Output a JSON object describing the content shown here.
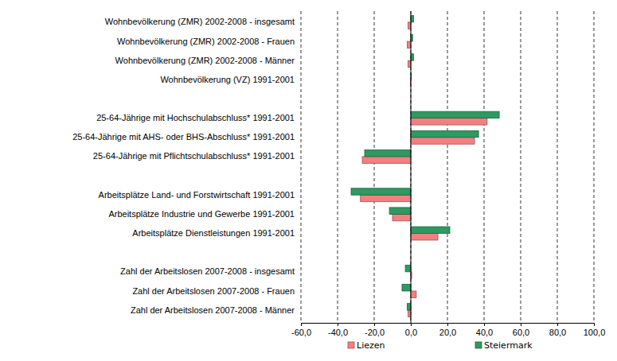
{
  "chart_data": {
    "type": "bar",
    "orientation": "horizontal",
    "categories": [
      "Wohnbevölkerung (ZMR) 2002-2008 - insgesamt",
      "Wohnbevölkerung (ZMR) 2002-2008 - Frauen",
      "Wohnbevölkerung (ZMR) 2002-2008 - Männer",
      "Wohnbevölkerung (VZ) 1991-2001",
      null,
      "25-64-Jährige mit Hochschulabschluss* 1991-2001",
      "25-64-Jährige mit AHS- oder BHS-Abschluss* 1991-2001",
      "25-64-Jährige mit Pflichtschulabschluss* 1991-2001",
      null,
      "Arbeitsplätze Land- und Forstwirtschaft 1991-2001",
      "Arbeitsplätze Industrie und Gewerbe 1991-2001",
      "Arbeitsplätze Dienstleistungen 1991-2001",
      null,
      "Zahl der Arbeitslosen 2007-2008 - insgesamt",
      "Zahl der Arbeitslosen 2007-2008 - Frauen",
      "Zahl der Arbeitslosen 2007-2008 - Männer"
    ],
    "series": [
      {
        "name": "Liezen",
        "color": "#f28080",
        "values": [
          -1.5,
          -2,
          -1.5,
          -0.2,
          null,
          41.7,
          34.8,
          -26.5,
          null,
          -27.5,
          -10,
          14.8,
          null,
          0.5,
          3,
          -1.5
        ]
      },
      {
        "name": "Steiermark",
        "color": "#2e9960",
        "values": [
          1.5,
          1,
          1.5,
          0.3,
          null,
          48.3,
          37,
          -25.2,
          null,
          -32.6,
          -11.7,
          21.3,
          null,
          -3,
          -4.8,
          -2
        ]
      }
    ],
    "xlim": [
      -60,
      100
    ],
    "xticks": [
      {
        "value": -60,
        "label": "-60,0"
      },
      {
        "value": -40,
        "label": "-40,0"
      },
      {
        "value": -20,
        "label": "-20,0"
      },
      {
        "value": 0,
        "label": "0,0"
      },
      {
        "value": 20,
        "label": "20,0"
      },
      {
        "value": 40,
        "label": "40,0"
      },
      {
        "value": 60,
        "label": "60,0"
      },
      {
        "value": 80,
        "label": "80,0"
      },
      {
        "value": 100,
        "label": "100,0"
      }
    ],
    "grid": true,
    "legend": "bottom"
  }
}
